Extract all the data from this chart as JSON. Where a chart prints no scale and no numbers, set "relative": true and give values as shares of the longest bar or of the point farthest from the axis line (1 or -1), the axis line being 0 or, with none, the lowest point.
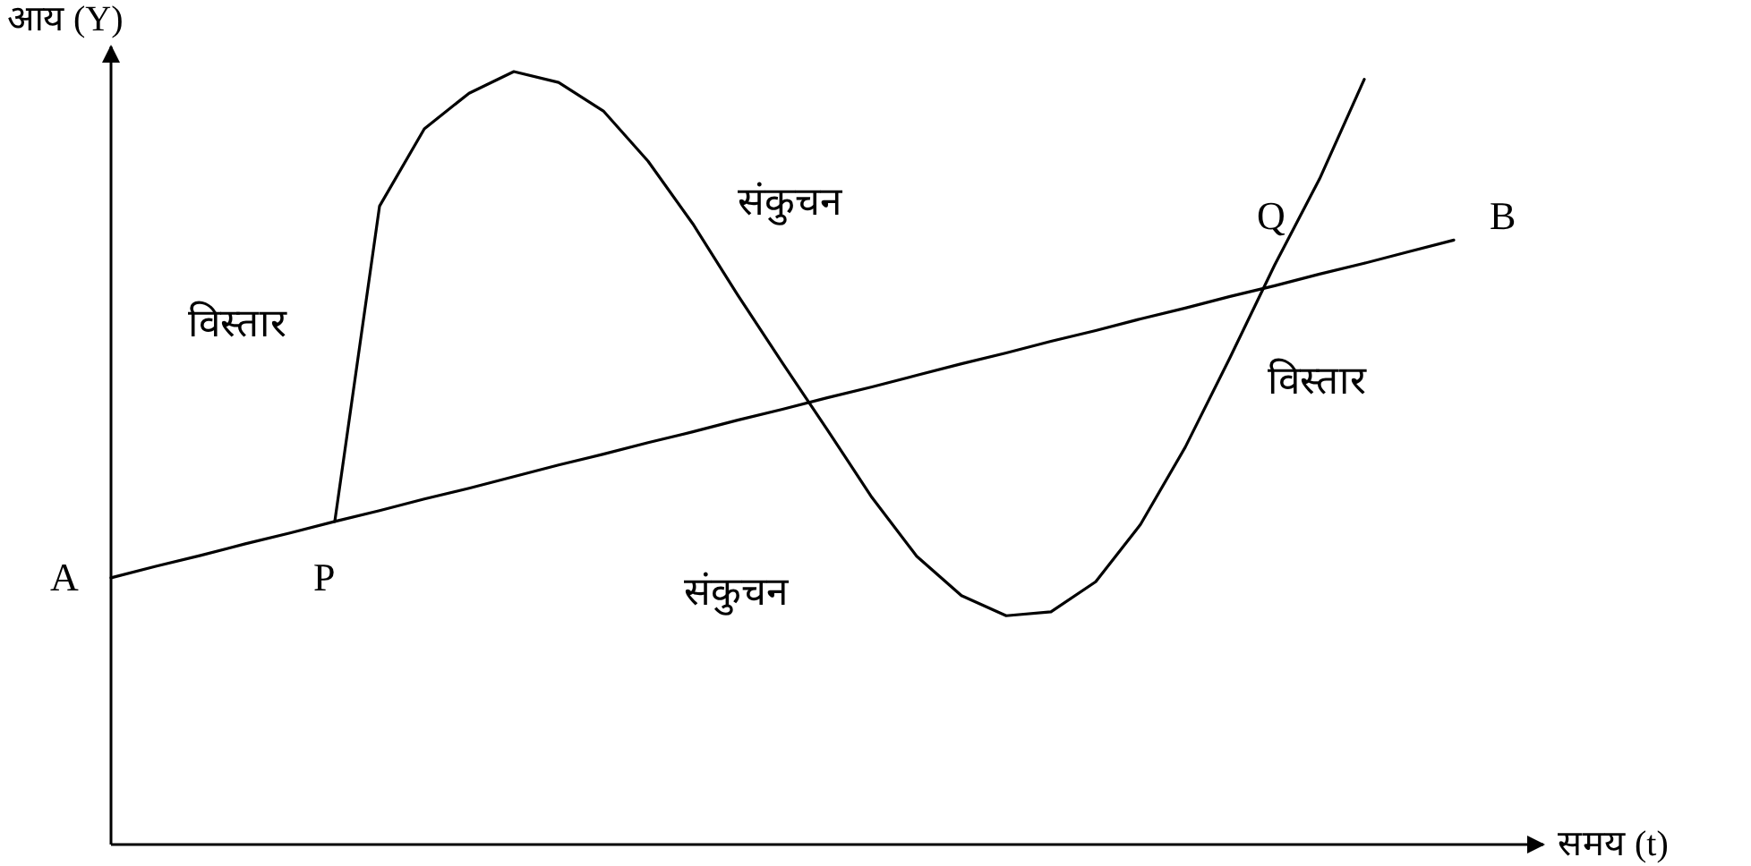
{
  "chart_data": {
    "type": "line",
    "relative": true,
    "xlabel": "समय (t)",
    "ylabel": "आय (Y)",
    "categories": [
      null,
      null,
      null,
      null,
      null,
      null,
      null,
      null,
      null,
      null,
      null,
      null,
      null,
      null,
      null,
      null,
      null,
      null,
      null,
      null,
      null,
      null,
      null,
      null,
      null,
      null,
      null,
      null,
      null,
      null,
      null
    ],
    "series": [
      {
        "color": "#000000",
        "values": [
          0.345,
          0.36,
          0.374,
          0.389,
          0.403,
          0.418,
          0.432,
          0.447,
          0.461,
          0.476,
          0.491,
          0.505,
          0.52,
          0.534,
          0.549,
          0.563,
          0.578,
          0.592,
          0.607,
          0.622,
          0.636,
          0.651,
          0.665,
          0.68,
          0.694,
          0.709,
          0.723,
          0.738,
          0.752,
          0.767,
          0.782
        ]
      },
      {
        "color": "#000000",
        "values": [
          null,
          null,
          null,
          null,
          null,
          0.418,
          0.826,
          0.926,
          0.972,
          1.0,
          0.986,
          0.949,
          0.884,
          0.803,
          0.711,
          0.623,
          0.537,
          0.449,
          0.373,
          0.322,
          0.296,
          0.301,
          0.34,
          0.414,
          0.514,
          0.63,
          0.75,
          0.861,
          0.99,
          null,
          null
        ]
      }
    ],
    "annotations": [
      "A",
      "P",
      "Q",
      "B",
      "विस्तार",
      "संकुचन",
      "संकुचन",
      "विस्तार"
    ]
  }
}
